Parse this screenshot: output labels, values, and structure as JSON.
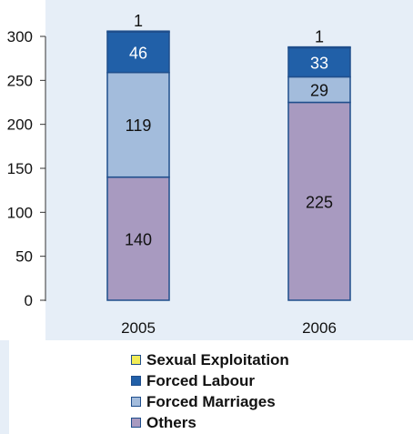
{
  "chart_data": {
    "type": "bar",
    "stacked": true,
    "categories": [
      "2005",
      "2006"
    ],
    "series": [
      {
        "name": "Others",
        "values": [
          140,
          225
        ],
        "color": "#a89ac0"
      },
      {
        "name": "Forced Marriages",
        "values": [
          119,
          29
        ],
        "color": "#a3bcdc"
      },
      {
        "name": "Forced Labour",
        "values": [
          46,
          33
        ],
        "color": "#2160a8"
      },
      {
        "name": "Sexual Exploitation",
        "values": [
          1,
          1
        ],
        "color": "#f1ec57"
      }
    ],
    "title": "",
    "xlabel": "",
    "ylabel": "",
    "ylim": [
      0,
      300
    ],
    "yticks": [
      "0",
      "50",
      "100",
      "150",
      "200",
      "250",
      "300"
    ],
    "grid": false,
    "legend_placement": "bottom",
    "legend_order": [
      "Sexual Exploitation",
      "Forced Labour",
      "Forced Marriages",
      "Others"
    ]
  },
  "colors": {
    "background": "#e6eef7",
    "bar_outline": "#1f4e8c",
    "axis": "#333333"
  }
}
